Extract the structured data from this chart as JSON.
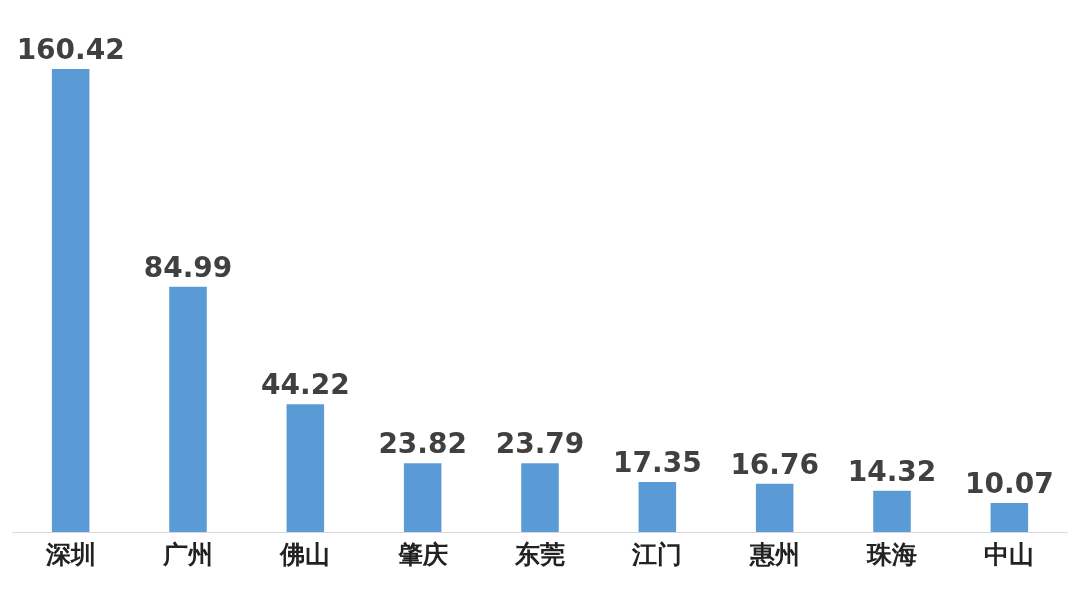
{
  "chart_data": {
    "type": "bar",
    "categories": [
      "深圳",
      "广州",
      "佛山",
      "肇庆",
      "东莞",
      "江门",
      "惠州",
      "珠海",
      "中山"
    ],
    "values": [
      160.42,
      84.99,
      44.22,
      23.82,
      23.79,
      17.35,
      16.76,
      14.32,
      10.07
    ],
    "color": "#5b9bd5",
    "data_labels": true,
    "legend": false
  }
}
